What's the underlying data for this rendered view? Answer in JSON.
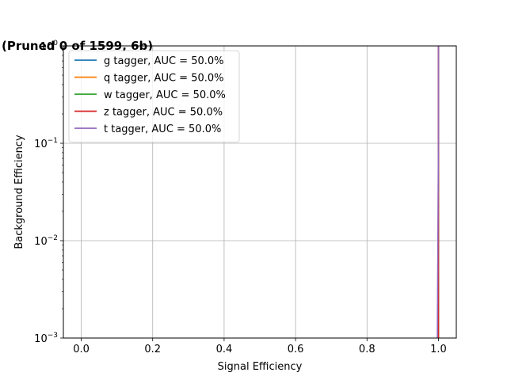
{
  "chart_data": {
    "type": "line",
    "title": "(Pruned 0 of 1599, 6b)",
    "xlabel": "Signal Efficiency",
    "ylabel": "Background Efficiency",
    "xlim": [
      -0.05,
      1.05
    ],
    "ylim": [
      0.001,
      1
    ],
    "yscale": "log",
    "grid": true,
    "legend_position": "upper-left",
    "x_ticks": [
      0.0,
      0.2,
      0.4,
      0.6,
      0.8,
      1.0
    ],
    "x_tick_labels": [
      "0.0",
      "0.2",
      "0.4",
      "0.6",
      "0.8",
      "1.0"
    ],
    "y_ticks": [
      0.001,
      0.01,
      0.1,
      1
    ],
    "y_tick_labels": [
      {
        "base": "10",
        "exp": "−3"
      },
      {
        "base": "10",
        "exp": "−2"
      },
      {
        "base": "10",
        "exp": "−1"
      },
      {
        "base": "10",
        "exp": "0"
      }
    ],
    "series": [
      {
        "name": "g tagger, AUC = 50.0%",
        "color": "#1f77b4",
        "x": [
          1.0,
          1.0,
          1.0
        ],
        "y": [
          0.001,
          0.1,
          1
        ]
      },
      {
        "name": "q tagger, AUC = 50.0%",
        "color": "#ff7f0e",
        "x": [
          1.0,
          1.0,
          1.0
        ],
        "y": [
          0.001,
          0.1,
          1
        ]
      },
      {
        "name": "w tagger, AUC = 50.0%",
        "color": "#2ca02c",
        "x": [
          1.0,
          1.0,
          1.0
        ],
        "y": [
          0.001,
          0.1,
          1
        ]
      },
      {
        "name": "z tagger, AUC = 50.0%",
        "color": "#d62728",
        "x": [
          1.0,
          1.0,
          1.0
        ],
        "y": [
          0.001,
          0.1,
          1
        ]
      },
      {
        "name": "t tagger, AUC = 50.0%",
        "color": "#9467bd",
        "x": [
          0.997,
          1.0,
          1.0
        ],
        "y": [
          0.001,
          0.1,
          1
        ]
      }
    ]
  }
}
